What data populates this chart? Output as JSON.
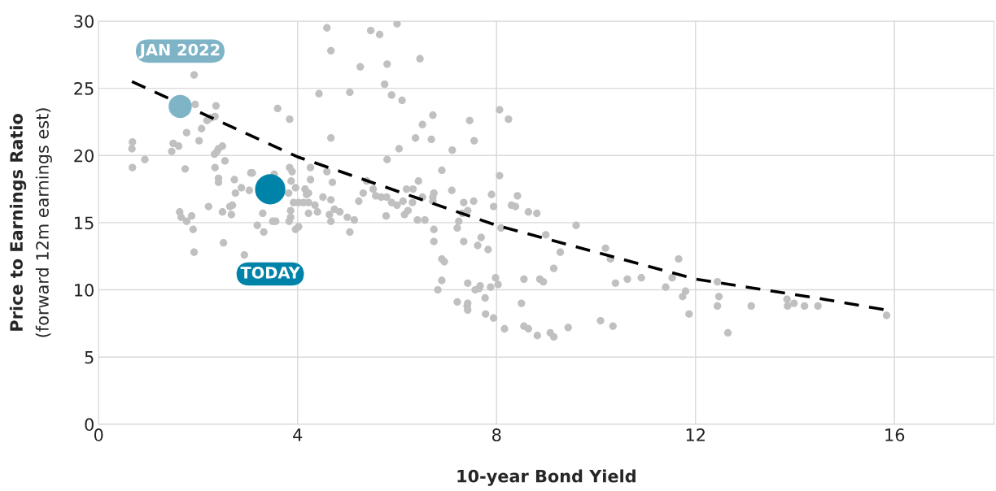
{
  "chart_data": {
    "type": "scatter",
    "xlabel": "10-year Bond Yield",
    "ylabel": "Price to Earnings Ratio\n(forward 12m earnings est)",
    "xlim": [
      0,
      18
    ],
    "xticks": [
      0,
      4,
      8,
      12,
      16
    ],
    "ylim": [
      0,
      30
    ],
    "yticks": [
      0,
      5,
      10,
      15,
      20,
      25,
      30
    ],
    "grid": true,
    "legend": false,
    "series": [
      {
        "color": "#c0c0c0",
        "x": [
          4.59,
          4.67,
          5.47,
          5.65,
          6.0,
          6.46,
          5.26,
          5.8,
          5.75,
          4.43,
          5.05,
          5.89,
          6.1,
          6.72,
          6.51,
          7.46,
          8.06,
          8.24,
          4.67,
          6.37,
          6.69,
          7.55,
          6.04,
          7.11,
          5.8,
          4.26,
          4.59,
          6.9,
          8.06,
          4.26,
          4.7,
          5.39,
          6.43,
          5.32,
          5.52,
          5.57,
          5.68,
          5.79,
          6.19,
          6.32,
          6.74,
          6.72,
          6.72,
          7.1,
          6.51,
          7.9,
          8.42,
          4.51,
          4.67,
          4.35,
          5.23,
          5.89,
          6.0,
          6.12,
          6.31,
          7.34,
          7.54,
          7.94,
          8.3,
          8.38,
          4.4,
          4.74,
          4.85,
          4.64,
          5.0,
          5.14,
          5.78,
          6.15,
          6.22,
          7.31,
          7.42,
          8.64,
          8.81,
          4.67,
          6.41,
          6.56,
          7.24,
          5.05,
          6.74,
          7.21,
          8.09,
          6.74,
          7.34,
          7.69,
          7.62,
          7.83,
          8.99,
          6.9,
          6.95,
          6.9,
          6.82,
          7.42,
          7.57,
          7.65,
          7.67,
          7.88,
          7.98,
          8.03,
          8.55,
          8.87,
          8.94,
          7.21,
          7.42,
          7.41,
          7.42,
          7.77,
          8.5,
          7.78,
          7.94,
          8.16,
          8.55,
          8.64,
          8.82,
          9.08,
          9.6,
          9.28,
          9.15,
          10.19,
          10.29,
          10.39,
          10.63,
          10.91,
          11.66,
          11.53,
          11.4,
          11.8,
          11.74,
          11.87,
          12.44,
          12.47,
          12.44,
          13.12,
          12.65,
          10.09,
          10.34,
          9.44,
          9.15,
          13.84,
          13.85,
          13.98,
          14.19,
          14.46,
          15.84,
          1.92,
          1.94,
          2.36,
          3.6,
          3.84,
          2.18,
          2.26,
          2.34,
          2.07,
          1.77,
          2.02,
          0.68,
          0.67,
          1.5,
          1.61,
          1.47,
          2.49,
          2.41,
          2.38,
          2.33,
          0.93,
          0.68,
          1.74,
          2.54,
          2.34,
          3.06,
          3.09,
          3.53,
          3.84,
          3.89,
          2.41,
          2.41,
          2.73,
          2.87,
          2.75,
          3.03,
          3.87,
          3.96,
          3.82,
          4.15,
          4.22,
          4.18,
          4.22,
          4.12,
          3.92,
          4.02,
          2.21,
          2.49,
          2.64,
          2.69,
          2.67,
          1.63,
          1.66,
          1.87,
          1.77,
          3.3,
          3.86,
          3.86,
          3.83,
          4.22,
          3.5,
          3.56,
          3.19,
          1.9,
          1.92,
          2.51,
          2.93,
          3.32,
          3.96,
          4.02
        ],
        "values": [
          29.5,
          27.8,
          29.3,
          29.0,
          29.8,
          27.2,
          26.6,
          26.8,
          25.3,
          24.6,
          24.7,
          24.5,
          24.1,
          23.0,
          22.3,
          22.6,
          23.4,
          22.7,
          21.3,
          21.3,
          21.2,
          21.1,
          20.5,
          20.4,
          19.7,
          19.1,
          18.8,
          18.9,
          18.5,
          18.2,
          18.0,
          18.1,
          18.1,
          17.2,
          17.5,
          17.0,
          16.9,
          16.9,
          17.5,
          17.5,
          17.2,
          16.9,
          16.6,
          17.4,
          16.9,
          17.1,
          17.0,
          16.9,
          16.7,
          16.3,
          16.6,
          16.5,
          16.3,
          16.6,
          16.5,
          16.5,
          16.6,
          16.2,
          16.3,
          16.2,
          15.8,
          16.0,
          15.8,
          15.6,
          15.4,
          15.2,
          15.5,
          15.6,
          15.9,
          15.7,
          15.9,
          15.8,
          15.7,
          15.1,
          15.2,
          15.2,
          15.1,
          14.3,
          14.5,
          14.6,
          14.6,
          13.6,
          13.6,
          13.9,
          13.3,
          13.0,
          14.1,
          12.3,
          12.1,
          10.7,
          10.0,
          10.5,
          10.0,
          10.1,
          10.3,
          10.2,
          10.9,
          10.4,
          10.8,
          10.8,
          10.6,
          9.1,
          9.0,
          8.8,
          8.5,
          9.4,
          9.0,
          8.2,
          7.9,
          7.1,
          7.3,
          7.1,
          6.6,
          6.8,
          14.8,
          12.8,
          11.6,
          13.1,
          12.3,
          10.5,
          10.8,
          10.9,
          12.3,
          10.9,
          10.2,
          9.9,
          9.5,
          8.2,
          10.6,
          9.5,
          8.8,
          8.8,
          6.8,
          7.7,
          7.3,
          7.2,
          6.5,
          9.3,
          8.8,
          9.0,
          8.8,
          8.8,
          8.1,
          26.0,
          23.8,
          23.7,
          23.5,
          22.7,
          22.6,
          22.8,
          22.9,
          22.0,
          21.7,
          21.1,
          21.0,
          20.5,
          20.9,
          20.7,
          20.3,
          20.7,
          20.5,
          20.3,
          20.1,
          19.7,
          19.1,
          19.0,
          19.6,
          19.1,
          18.7,
          18.7,
          18.6,
          19.1,
          18.8,
          18.3,
          18.0,
          18.2,
          17.6,
          17.2,
          17.4,
          18.1,
          17.6,
          17.2,
          17.5,
          17.2,
          17.1,
          16.5,
          16.5,
          16.5,
          16.5,
          16.2,
          15.8,
          16.2,
          16.3,
          15.6,
          15.8,
          15.4,
          15.5,
          15.1,
          15.7,
          15.9,
          15.4,
          15.1,
          15.7,
          15.1,
          15.1,
          14.8,
          14.5,
          12.8,
          13.5,
          12.6,
          14.3,
          14.5,
          14.7
        ]
      },
      {
        "type": "line",
        "color": "#000000",
        "line_style": "dashed",
        "marker": "none",
        "x": [
          0.67,
          4,
          8,
          12,
          14.42,
          15.84
        ],
        "values": [
          25.5,
          19.9,
          14.8,
          10.8,
          9.4,
          8.5
        ]
      },
      {
        "type": "scatter",
        "name": "JAN 2022",
        "color": "#7fb3c6",
        "x": [
          1.64
        ],
        "values": [
          23.65
        ]
      },
      {
        "type": "scatter",
        "name": "TODAY",
        "color": "#0083a9",
        "x": [
          3.45
        ],
        "values": [
          17.48
        ]
      }
    ]
  }
}
